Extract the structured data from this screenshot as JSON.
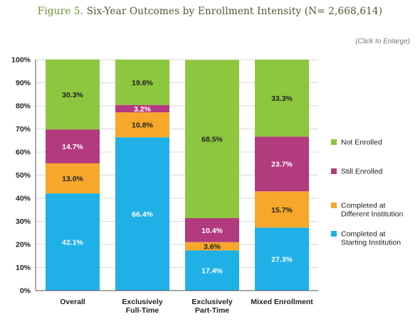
{
  "header": {
    "figure_label": "Figure 5.",
    "title": "Six-Year Outcomes by Enrollment Intensity (N= 2,668,614)",
    "enlarge_link": "(Click to Enlarge)"
  },
  "chart_data": {
    "type": "bar",
    "stacked": true,
    "title": "Six-Year Outcomes by Enrollment Intensity (N= 2,668,614)",
    "categories": [
      [
        "Overall"
      ],
      [
        "Exclusively",
        "Full-Time"
      ],
      [
        "Exclusively",
        "Part-Time"
      ],
      [
        "Mixed Enrollment"
      ]
    ],
    "series": [
      {
        "name": "Completed at Starting Institution",
        "legend_lines": [
          "Completed at",
          "Starting Institution"
        ],
        "color": "#1fb0e8",
        "values": [
          42.1,
          66.4,
          17.4,
          27.3
        ],
        "labels": [
          "42.1%",
          "66.4%",
          "17.4%",
          "27.3%"
        ],
        "label_colors": [
          "#ffffff",
          "#ffffff",
          "#ffffff",
          "#ffffff"
        ]
      },
      {
        "name": "Completed at Different Institution",
        "legend_lines": [
          "Completed at",
          "Different Institution"
        ],
        "color": "#f7a82a",
        "values": [
          13.0,
          10.8,
          3.6,
          15.7
        ],
        "labels": [
          "13.0%",
          "10.8%",
          "3.6%",
          "15.7%"
        ],
        "label_colors": [
          "#222222",
          "#222222",
          "#222222",
          "#222222"
        ]
      },
      {
        "name": "Still Enrolled",
        "legend_lines": [
          "Still Enrolled"
        ],
        "color": "#b23a7e",
        "values": [
          14.7,
          3.2,
          10.4,
          23.7
        ],
        "labels": [
          "14.7%",
          "3.2%",
          "10.4%",
          "23.7%"
        ],
        "label_colors": [
          "#ffffff",
          "#ffffff",
          "#ffffff",
          "#ffffff"
        ]
      },
      {
        "name": "Not Enrolled",
        "legend_lines": [
          "Not Enrolled"
        ],
        "color": "#8dc63f",
        "values": [
          30.3,
          19.6,
          68.5,
          33.3
        ],
        "labels": [
          "30.3%",
          "19.6%",
          "68.5%",
          "33.3%"
        ],
        "label_colors": [
          "#222222",
          "#222222",
          "#222222",
          "#222222"
        ]
      }
    ],
    "legend_order": [
      3,
      2,
      1,
      0
    ],
    "y_ticks": [
      "0%",
      "10%",
      "20%",
      "30%",
      "40%",
      "50%",
      "60%",
      "70%",
      "80%",
      "90%",
      "100%"
    ],
    "ylim": [
      0,
      100
    ],
    "xlabel": "",
    "ylabel": "",
    "grid": true,
    "legend_position": "right"
  }
}
